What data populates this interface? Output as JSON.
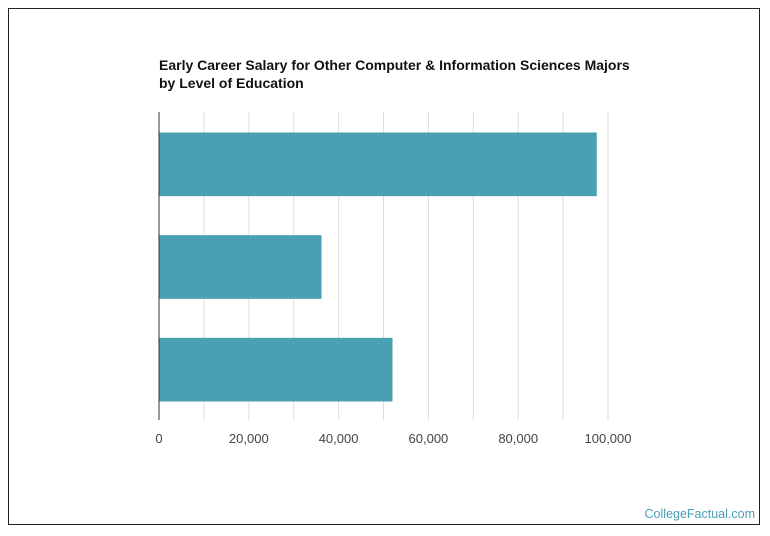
{
  "title_lines": [
    "Early Career Salary for Other Computer & Information Sciences Majors",
    "by Level of Education"
  ],
  "credit": "CollegeFactual.com",
  "chart_data": {
    "type": "bar",
    "orientation": "horizontal",
    "title": "Early Career Salary for Other Computer & Information Sciences Majors by Level of Education",
    "categories": [
      "",
      "",
      ""
    ],
    "values": [
      97500,
      36200,
      52000
    ],
    "xlim": [
      0,
      100000
    ],
    "xticks": [
      0,
      20000,
      40000,
      60000,
      80000,
      100000
    ],
    "xtick_labels": [
      "0",
      "20,000",
      "40,000",
      "60,000",
      "80,000",
      "100,000"
    ],
    "minor_gridlines": [
      10000,
      30000,
      50000,
      70000,
      90000
    ],
    "grid": true,
    "legend": "none",
    "bar_color": "#4aa0b3",
    "grid_color": "#dddddd"
  }
}
